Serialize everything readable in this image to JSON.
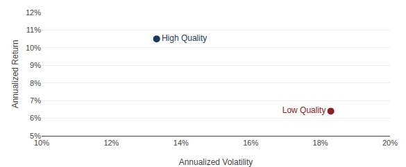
{
  "chart_data": {
    "type": "scatter",
    "xlabel": "Annualized Volatility",
    "ylabel": "Annualized Return",
    "series": [
      {
        "name": "High Quality",
        "color": "#1b3a5c",
        "x": [
          0.133
        ],
        "values": [
          0.105
        ]
      },
      {
        "name": "Low Quality",
        "color": "#8b2020",
        "x": [
          0.183
        ],
        "values": [
          0.064
        ]
      }
    ],
    "xlim": [
      0.1,
      0.2
    ],
    "ylim": [
      0.05,
      0.12
    ],
    "xticks": [
      {
        "value": 0.1,
        "label": "10%"
      },
      {
        "value": 0.12,
        "label": "12%"
      },
      {
        "value": 0.14,
        "label": "14%"
      },
      {
        "value": 0.16,
        "label": "16%"
      },
      {
        "value": 0.18,
        "label": "18%"
      },
      {
        "value": 0.2,
        "label": "20%"
      }
    ],
    "yticks": [
      {
        "value": 0.05,
        "label": "5%"
      },
      {
        "value": 0.06,
        "label": "6%"
      },
      {
        "value": 0.07,
        "label": "7%"
      },
      {
        "value": 0.08,
        "label": "8%"
      },
      {
        "value": 0.09,
        "label": "9%"
      },
      {
        "value": 0.1,
        "label": "10%"
      },
      {
        "value": 0.11,
        "label": "11%"
      },
      {
        "value": 0.12,
        "label": "12%"
      }
    ],
    "grid": "y"
  }
}
